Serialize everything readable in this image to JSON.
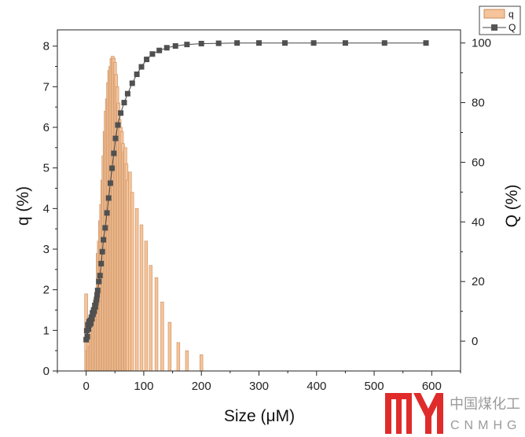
{
  "chart_data": {
    "type": "bar+line",
    "xlabel": "Size (μM)",
    "y1label": "q (%)",
    "y2label": "Q (%)",
    "xlim": [
      -50,
      650
    ],
    "y1lim": [
      0,
      8.4
    ],
    "y2lim": [
      -10,
      104.4
    ],
    "x_ticks": [
      "0",
      "100",
      "200",
      "300",
      "400",
      "500",
      "600"
    ],
    "y1_ticks": [
      "0",
      "1",
      "2",
      "3",
      "4",
      "5",
      "6",
      "7",
      "8"
    ],
    "y2_ticks": [
      "0",
      "20",
      "40",
      "60",
      "80",
      "100"
    ],
    "legend": [
      {
        "name": "q",
        "kind": "bar"
      },
      {
        "name": "Q",
        "kind": "line-square"
      }
    ],
    "q": {
      "name": "q",
      "color": "#f5c49a",
      "edge": "#c98d5e",
      "x": [
        0,
        2,
        4,
        6,
        8,
        10,
        12,
        14,
        16,
        18,
        20,
        22,
        24,
        26,
        28,
        30,
        32,
        34,
        36,
        38,
        40,
        42,
        44,
        46,
        48,
        50,
        52,
        54,
        56,
        58,
        60,
        62,
        64,
        66,
        68,
        70,
        72,
        76,
        80,
        88,
        96,
        104,
        112,
        122,
        132,
        145,
        160,
        175,
        200
      ],
      "values": [
        1.9,
        0.5,
        0.8,
        0.6,
        1.0,
        0.9,
        1.2,
        1.4,
        1.6,
        1.8,
        2.9,
        3.2,
        3.7,
        4.1,
        4.7,
        5.3,
        5.9,
        6.4,
        6.7,
        7.1,
        7.4,
        7.5,
        7.7,
        7.75,
        7.7,
        7.6,
        7.3,
        7.0,
        6.6,
        6.2,
        6.0,
        5.9,
        5.6,
        5.4,
        5.5,
        5.1,
        4.7,
        4.9,
        4.4,
        4.0,
        3.6,
        3.2,
        2.6,
        2.3,
        1.7,
        1.2,
        0.7,
        0.5,
        0.4
      ]
    },
    "Q": {
      "name": "Q",
      "color": "#444444",
      "x": [
        0,
        1,
        2,
        3,
        4,
        5,
        6,
        7,
        8,
        9,
        10,
        11,
        12,
        13,
        14,
        15,
        16,
        17,
        18,
        19,
        20,
        22,
        24,
        26,
        28,
        30,
        33,
        36,
        39,
        42,
        45,
        48,
        51,
        55,
        60,
        66,
        72,
        80,
        88,
        96,
        105,
        115,
        127,
        140,
        155,
        175,
        200,
        230,
        262,
        300,
        345,
        395,
        450,
        518,
        590
      ],
      "values": [
        0.5,
        3.5,
        1.5,
        5.5,
        4.0,
        6.5,
        5.5,
        7.0,
        6.0,
        8.0,
        7.5,
        9.5,
        9.0,
        10.5,
        10.0,
        12.0,
        11.5,
        13.0,
        14.0,
        15.5,
        17.0,
        20.0,
        22.0,
        26.0,
        30.0,
        34.0,
        38.0,
        43.0,
        48.0,
        53.0,
        58.0,
        63.0,
        68.0,
        72.5,
        76.5,
        80.0,
        83.0,
        86.5,
        89.5,
        92.0,
        94.5,
        96.3,
        97.5,
        98.4,
        99.0,
        99.5,
        99.8,
        99.9,
        100.0,
        100.0,
        100.0,
        100.0,
        100.0,
        100.0,
        100.0
      ]
    }
  },
  "watermark": {
    "logo": "MYH",
    "cn": "中国煤化工",
    "en": "CNMHG"
  }
}
